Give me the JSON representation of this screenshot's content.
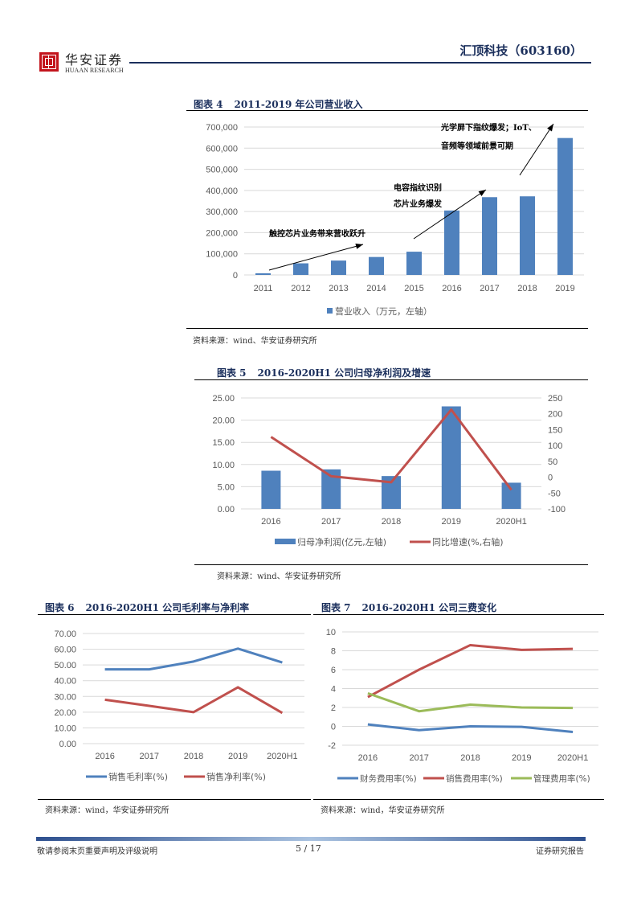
{
  "header": {
    "logo_cn": "华安证券",
    "logo_en": "HUAAN RESEARCH",
    "company_title": "汇顶科技（603160）"
  },
  "figures": {
    "fig4": {
      "label": "图表 4",
      "title": "2011-2019 年公司营业收入",
      "source": "资料来源：wind、华安证券研究所"
    },
    "fig5": {
      "label": "图表 5",
      "title": "2016-2020H1 公司归母净利润及增速",
      "source": "资料来源：wind、华安证券研究所"
    },
    "fig6": {
      "label": "图表 6",
      "title": "2016-2020H1 公司毛利率与净利率",
      "source": "资料来源：wind，华安证券研究所"
    },
    "fig7": {
      "label": "图表 7",
      "title": "2016-2020H1 公司三费变化",
      "source": "资料来源：wind，华安证券研究所"
    }
  },
  "colors": {
    "bar_blue": "#4f81bd",
    "line_red": "#c0504d",
    "line_blue": "#4f81bd",
    "line_green": "#9bbb59",
    "grid": "#d9d9d9",
    "tick": "#595959",
    "navy": "#1b2f5c"
  },
  "chart_data": [
    {
      "id": "fig4",
      "type": "bar",
      "title": "2011-2019 年公司营业收入",
      "categories": [
        "2011",
        "2012",
        "2013",
        "2014",
        "2015",
        "2016",
        "2017",
        "2018",
        "2019"
      ],
      "series": [
        {
          "name": "营业收入（万元，左轴）",
          "values": [
            8000,
            55000,
            68000,
            85000,
            110000,
            305000,
            368000,
            372000,
            648000
          ]
        }
      ],
      "ylim": [
        0,
        700000
      ],
      "yticks": [
        "0",
        "100,000",
        "200,000",
        "300,000",
        "400,000",
        "500,000",
        "600,000",
        "700,000"
      ],
      "grid": true,
      "legend_position": "bottom",
      "annotations": [
        {
          "text": "触控芯片业务带来营收跃升"
        },
        {
          "text": "电容指纹识别"
        },
        {
          "text": "芯片业务爆发"
        },
        {
          "text": "光学屏下指纹爆发；IoT、"
        },
        {
          "text": "音频等领域前景可期"
        }
      ]
    },
    {
      "id": "fig5",
      "type": "bar",
      "title": "2016-2020H1 公司归母净利润及增速",
      "categories": [
        "2016",
        "2017",
        "2018",
        "2019",
        "2020H1"
      ],
      "series": [
        {
          "name": "归母净利润(亿元,左轴)",
          "type": "bar",
          "axis": "left",
          "values": [
            8.6,
            8.9,
            7.4,
            23.1,
            5.9
          ]
        },
        {
          "name": "同比增速(%,右轴)",
          "type": "line",
          "axis": "right",
          "values": [
            127,
            3,
            -16,
            213,
            -40
          ]
        }
      ],
      "ylim": [
        0,
        25
      ],
      "yticks": [
        "0.00",
        "5.00",
        "10.00",
        "15.00",
        "20.00",
        "25.00"
      ],
      "y2lim": [
        -100,
        250
      ],
      "y2ticks": [
        "-100",
        "-50",
        "0",
        "50",
        "100",
        "150",
        "200",
        "250"
      ],
      "grid": true,
      "legend_position": "bottom"
    },
    {
      "id": "fig6",
      "type": "line",
      "title": "2016-2020H1 公司毛利率与净利率",
      "categories": [
        "2016",
        "2017",
        "2018",
        "2019",
        "2020H1"
      ],
      "series": [
        {
          "name": "销售毛利率(%)",
          "values": [
            47.2,
            47.2,
            52.2,
            60.4,
            51.6
          ]
        },
        {
          "name": "销售净利率(%)",
          "values": [
            27.9,
            24.0,
            20.0,
            35.8,
            19.5
          ]
        }
      ],
      "ylim": [
        0,
        70
      ],
      "yticks": [
        "0.00",
        "10.00",
        "20.00",
        "30.00",
        "40.00",
        "50.00",
        "60.00",
        "70.00"
      ],
      "grid": true,
      "legend_position": "bottom"
    },
    {
      "id": "fig7",
      "type": "line",
      "title": "2016-2020H1 公司三费变化",
      "categories": [
        "2016",
        "2017",
        "2018",
        "2019",
        "2020H1"
      ],
      "series": [
        {
          "name": "财务费用率(%)",
          "values": [
            0.2,
            -0.4,
            0.0,
            -0.05,
            -0.6
          ]
        },
        {
          "name": "销售费用率(%)",
          "values": [
            3.1,
            6.0,
            8.6,
            8.1,
            8.2
          ]
        },
        {
          "name": "管理费用率(%)",
          "values": [
            3.5,
            1.6,
            2.3,
            2.0,
            1.95
          ]
        }
      ],
      "ylim": [
        -2,
        10
      ],
      "yticks": [
        "-2",
        "0",
        "2",
        "4",
        "6",
        "8",
        "10"
      ],
      "grid": true,
      "legend_position": "bottom"
    }
  ],
  "footer": {
    "disclaimer": "敬请参阅末页重要声明及评级说明",
    "page": "5 / 17",
    "doc_type": "证券研究报告"
  }
}
